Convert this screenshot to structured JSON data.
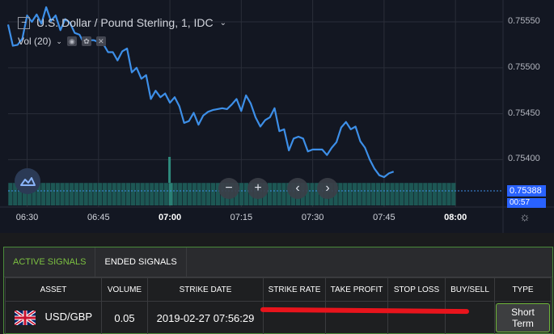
{
  "chart": {
    "title": "U.S. Dollar / Pound Sterling, 1, IDC",
    "volume_indicator": "Vol (20)",
    "price_ticks": [
      "0.75550",
      "0.75500",
      "0.75450",
      "0.75400"
    ],
    "last_price": "0.75388",
    "countdown": "00:57",
    "time_ticks": [
      "06:30",
      "06:45",
      "07:00",
      "07:15",
      "07:30",
      "07:45",
      "08:00"
    ],
    "bold_time_ticks": [
      "07:00",
      "08:00"
    ],
    "line_color": "#3d8fe8",
    "volume_color": "#26a69a",
    "nav_buttons": [
      "−",
      "+",
      "‹",
      "›"
    ]
  },
  "chart_data": {
    "type": "line",
    "x_start": "06:26",
    "x_step_minutes": 1,
    "x_range": [
      "06:26",
      "08:10"
    ],
    "ylim": [
      0.75366,
      0.75565
    ],
    "values": [
      0.75547,
      0.75524,
      0.75525,
      0.75532,
      0.75557,
      0.7555,
      0.75558,
      0.75548,
      0.75566,
      0.75551,
      0.75557,
      0.75541,
      0.75553,
      0.75549,
      0.75538,
      0.75536,
      0.75526,
      0.7553,
      0.7553,
      0.75528,
      0.75526,
      0.75517,
      0.75517,
      0.75508,
      0.75518,
      0.75521,
      0.75495,
      0.755,
      0.75488,
      0.75492,
      0.75466,
      0.75475,
      0.75468,
      0.75472,
      0.75462,
      0.75468,
      0.75458,
      0.7544,
      0.75442,
      0.75451,
      0.75438,
      0.75448,
      0.75452,
      0.75454,
      0.75455,
      0.75456,
      0.75455,
      0.7546,
      0.75466,
      0.75453,
      0.7547,
      0.75461,
      0.75446,
      0.75436,
      0.75443,
      0.75446,
      0.75456,
      0.75431,
      0.75433,
      0.7541,
      0.75423,
      0.75425,
      0.75423,
      0.75409,
      0.75411,
      0.75411,
      0.75411,
      0.75405,
      0.75413,
      0.75419,
      0.75435,
      0.75441,
      0.75433,
      0.75436,
      0.7542,
      0.75413,
      0.754,
      0.7539,
      0.75383,
      0.75381,
      0.75385,
      0.75387
    ],
    "volume_values": [
      3,
      3,
      3,
      3,
      3,
      3,
      3,
      3,
      3,
      3,
      3,
      3,
      3,
      3,
      3,
      3,
      3,
      3,
      3,
      3,
      3,
      3,
      3,
      3,
      3,
      3,
      3,
      3,
      3,
      3,
      3,
      3,
      3,
      3,
      3,
      3,
      3,
      3,
      3,
      3,
      3,
      3,
      3,
      3,
      3,
      3,
      3,
      3,
      3,
      3,
      3,
      3,
      3,
      3,
      3,
      3,
      3,
      3,
      3,
      3,
      3,
      3,
      3,
      3,
      3,
      3,
      3,
      3,
      3,
      3,
      3,
      3,
      3,
      3,
      3,
      3,
      3,
      3,
      3,
      3,
      3,
      3,
      3,
      3,
      3,
      3,
      3,
      3,
      3,
      3,
      3,
      3,
      3,
      3,
      3,
      3,
      3,
      3,
      3,
      3,
      3,
      3,
      3,
      3,
      3,
      3,
      3,
      3,
      3,
      3,
      3,
      3,
      3,
      3,
      3,
      3,
      3,
      3,
      3,
      3,
      3,
      3,
      3,
      3,
      3,
      3,
      3,
      3,
      3,
      3,
      3,
      3,
      3,
      3,
      3,
      3
    ],
    "volume_spike_time": "07:00",
    "volume_spike_value": 12,
    "grid": true
  },
  "signals": {
    "tabs": [
      "ACTIVE SIGNALS",
      "ENDED SIGNALS"
    ],
    "columns": [
      "ASSET",
      "VOLUME",
      "STRIKE DATE",
      "STRIKE RATE",
      "TAKE PROFIT",
      "STOP LOSS",
      "BUY/SELL",
      "TYPE"
    ],
    "rows": [
      {
        "asset": "USD/GBP",
        "volume": "0.05",
        "strike_date": "2019-02-27 07:56:29",
        "strike_rate": "",
        "take_profit": "",
        "stop_loss": "",
        "buy_sell": "",
        "type": "Short Term",
        "flag_icon": "uk-flag-icon"
      }
    ],
    "accent_color": "#7cc041",
    "redaction_color": "#e8141c"
  }
}
